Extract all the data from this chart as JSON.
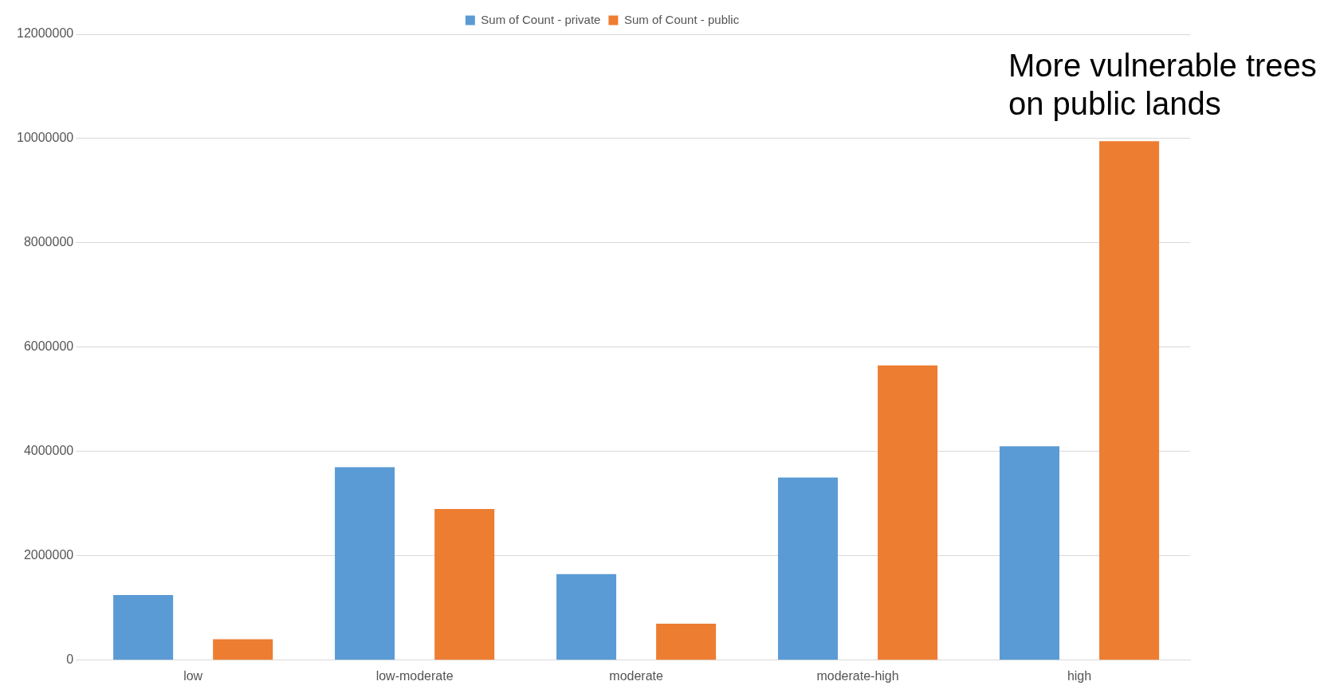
{
  "chart_data": {
    "type": "bar",
    "categories": [
      "low",
      "low-moderate",
      "moderate",
      "moderate-high",
      "high"
    ],
    "series": [
      {
        "name": "Sum of Count - private",
        "color": "#5b9bd5",
        "values": [
          1250000,
          3700000,
          1650000,
          3500000,
          4100000
        ]
      },
      {
        "name": "Sum of Count - public",
        "color": "#ed7d31",
        "values": [
          400000,
          2900000,
          700000,
          5650000,
          9950000
        ]
      }
    ],
    "ylim": [
      0,
      12000000
    ],
    "yticks": [
      0,
      2000000,
      4000000,
      6000000,
      8000000,
      10000000,
      12000000
    ],
    "grid": "y",
    "legend": "top",
    "annotations": [
      "More vulnerable trees on public lands"
    ]
  }
}
